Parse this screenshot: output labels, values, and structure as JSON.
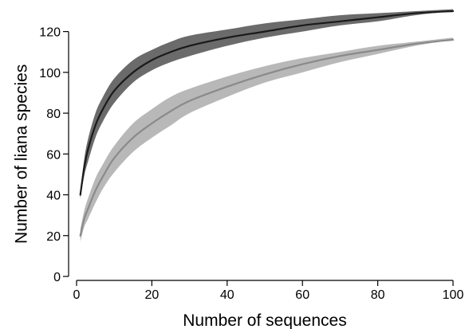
{
  "chart_data": {
    "type": "area",
    "xlabel": "Number of sequences",
    "ylabel": "Number of liana species",
    "xlim": [
      0,
      100
    ],
    "ylim": [
      0,
      130
    ],
    "xticks": [
      0,
      20,
      40,
      60,
      80,
      100
    ],
    "yticks": [
      0,
      20,
      40,
      60,
      80,
      100,
      120
    ],
    "grid": false,
    "legend": "none",
    "series": [
      {
        "color_line": "#1a1a1a",
        "color_band": "#6b6b6b",
        "x": [
          1,
          2,
          3,
          5,
          7,
          10,
          15,
          20,
          25,
          30,
          40,
          50,
          60,
          70,
          80,
          90,
          100
        ],
        "y": [
          40,
          53,
          62,
          74,
          82,
          91,
          100,
          106,
          110,
          113,
          117,
          120,
          123,
          125,
          127,
          129,
          130
        ],
        "lower": [
          38,
          49,
          56,
          68,
          76,
          85,
          95,
          101,
          105,
          108,
          113,
          117,
          120,
          123,
          125,
          128,
          130
        ],
        "upper": [
          42,
          57,
          67,
          80,
          88,
          97,
          106,
          111,
          115,
          118,
          121,
          124,
          126,
          128,
          129,
          130,
          131
        ]
      },
      {
        "color_line": "#8a8a8a",
        "color_band": "#b8b8b8",
        "x": [
          1,
          2,
          3,
          5,
          7,
          10,
          15,
          20,
          25,
          30,
          40,
          50,
          60,
          70,
          80,
          90,
          100
        ],
        "y": [
          20,
          28,
          33,
          42,
          49,
          58,
          68,
          75,
          81,
          86,
          93,
          99,
          104,
          108,
          111,
          114,
          116
        ],
        "lower": [
          17,
          24,
          28,
          36,
          43,
          51,
          61,
          68,
          74,
          80,
          88,
          95,
          100,
          105,
          109,
          113,
          116
        ],
        "upper": [
          23,
          32,
          38,
          48,
          55,
          64,
          75,
          82,
          88,
          92,
          98,
          103,
          107,
          110,
          113,
          115,
          117
        ]
      }
    ]
  }
}
